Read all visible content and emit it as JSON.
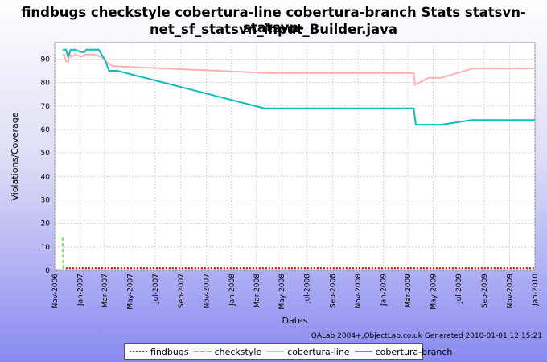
{
  "chart_data": {
    "type": "line",
    "title_line1": "findbugs checkstyle cobertura-line cobertura-branch  Stats statsvn-statsvn-",
    "title_line2": "net_sf_statsvn_input_Builder.java",
    "xlabel": "Dates",
    "ylabel": "Violations/Coverage",
    "xlim": [
      "2006-11-01",
      "2010-01-01"
    ],
    "ylim": [
      0,
      97
    ],
    "x_ticks": [
      "Nov-2006",
      "Jan-2007",
      "Mar-2007",
      "May-2007",
      "Jul-2007",
      "Sep-2007",
      "Nov-2007",
      "Jan-2008",
      "Mar-2008",
      "May-2008",
      "Jul-2008",
      "Sep-2008",
      "Nov-2008",
      "Jan-2009",
      "Mar-2009",
      "May-2009",
      "Jul-2009",
      "Sep-2009",
      "Nov-2009",
      "Jan-2010"
    ],
    "y_ticks": [
      0,
      10,
      20,
      30,
      40,
      50,
      60,
      70,
      80,
      90
    ],
    "grid": true,
    "legend_position": "bottom",
    "series": [
      {
        "name": "findbugs",
        "color": "#ee0000",
        "style": "dotted",
        "points": [
          [
            "2006-11-20",
            1
          ],
          [
            "2010-01-01",
            1
          ]
        ]
      },
      {
        "name": "checkstyle",
        "color": "#66ee33",
        "style": "dashed",
        "points": [
          [
            "2006-11-20",
            14
          ],
          [
            "2006-11-22",
            1
          ],
          [
            "2006-11-30",
            1
          ]
        ]
      },
      {
        "name": "cobertura-line",
        "color": "#ffb0b0",
        "style": "solid",
        "points": [
          [
            "2006-11-20",
            92
          ],
          [
            "2006-11-24",
            92
          ],
          [
            "2006-11-28",
            89
          ],
          [
            "2006-12-04",
            89
          ],
          [
            "2006-12-08",
            92
          ],
          [
            "2006-12-12",
            91
          ],
          [
            "2006-12-20",
            92
          ],
          [
            "2007-01-05",
            91
          ],
          [
            "2007-01-12",
            92
          ],
          [
            "2007-02-05",
            92
          ],
          [
            "2007-02-20",
            91
          ],
          [
            "2007-03-05",
            89
          ],
          [
            "2007-03-20",
            87
          ],
          [
            "2008-04-01",
            84
          ],
          [
            "2009-03-15",
            84
          ],
          [
            "2009-03-18",
            79
          ],
          [
            "2009-04-20",
            82
          ],
          [
            "2009-05-20",
            82
          ],
          [
            "2009-08-05",
            86
          ],
          [
            "2010-01-01",
            86
          ]
        ]
      },
      {
        "name": "cobertura-branch",
        "color": "#11bbbb",
        "style": "solid",
        "points": [
          [
            "2006-11-20",
            94
          ],
          [
            "2006-11-28",
            94
          ],
          [
            "2006-12-03",
            91
          ],
          [
            "2006-12-10",
            94
          ],
          [
            "2006-12-20",
            94
          ],
          [
            "2007-01-03",
            93
          ],
          [
            "2007-01-12",
            93
          ],
          [
            "2007-01-16",
            94
          ],
          [
            "2007-02-15",
            94
          ],
          [
            "2007-03-01",
            90
          ],
          [
            "2007-03-12",
            85
          ],
          [
            "2007-04-01",
            85
          ],
          [
            "2008-03-20",
            69
          ],
          [
            "2009-03-15",
            69
          ],
          [
            "2009-03-20",
            62
          ],
          [
            "2009-05-20",
            62
          ],
          [
            "2009-08-01",
            64
          ],
          [
            "2010-01-01",
            64
          ]
        ]
      }
    ]
  },
  "generated_note": "QALab 2004+,ObjectLab.co.uk Generated 2010-01-01 12:15:21"
}
